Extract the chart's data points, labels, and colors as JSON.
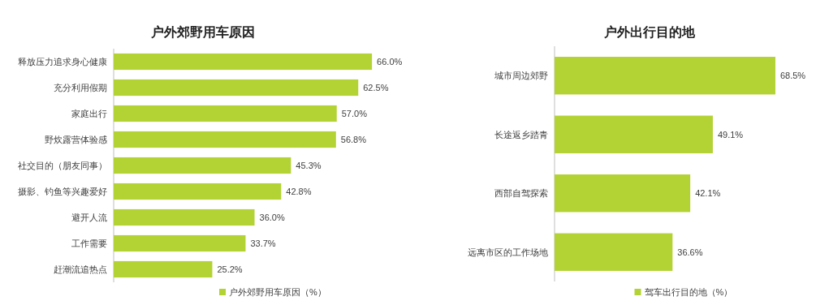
{
  "chart_data": [
    {
      "type": "bar",
      "orientation": "horizontal",
      "title": "户外郊野用车原因",
      "categories": [
        "释放压力追求身心健康",
        "充分利用假期",
        "家庭出行",
        "野炊露营体验感",
        "社交目的（朋友同事）",
        "摄影、钓鱼等兴趣爱好",
        "避开人流",
        "工作需要",
        "赶潮流追热点"
      ],
      "series": [
        {
          "name": "户外郊野用车原因（%）",
          "color": "#b3d234",
          "values": [
            66.0,
            62.5,
            57.0,
            56.8,
            45.3,
            42.8,
            36.0,
            33.7,
            25.2
          ],
          "value_labels": [
            "66.0%",
            "62.5%",
            "57.0%",
            "56.8%",
            "45.3%",
            "42.8%",
            "36.0%",
            "33.7%",
            "25.2%"
          ]
        }
      ],
      "legend": "bottom"
    },
    {
      "type": "bar",
      "orientation": "horizontal",
      "title": "户外出行目的地",
      "categories": [
        "城市周边郊野",
        "长途返乡踏青",
        "西部自驾探索",
        "远离市区的工作场地"
      ],
      "series": [
        {
          "name": "驾车出行目的地（%）",
          "color": "#b3d234",
          "values": [
            68.5,
            49.1,
            42.1,
            36.6
          ],
          "value_labels": [
            "68.5%",
            "49.1%",
            "42.1%",
            "36.6%"
          ]
        }
      ],
      "legend": "bottom"
    }
  ]
}
